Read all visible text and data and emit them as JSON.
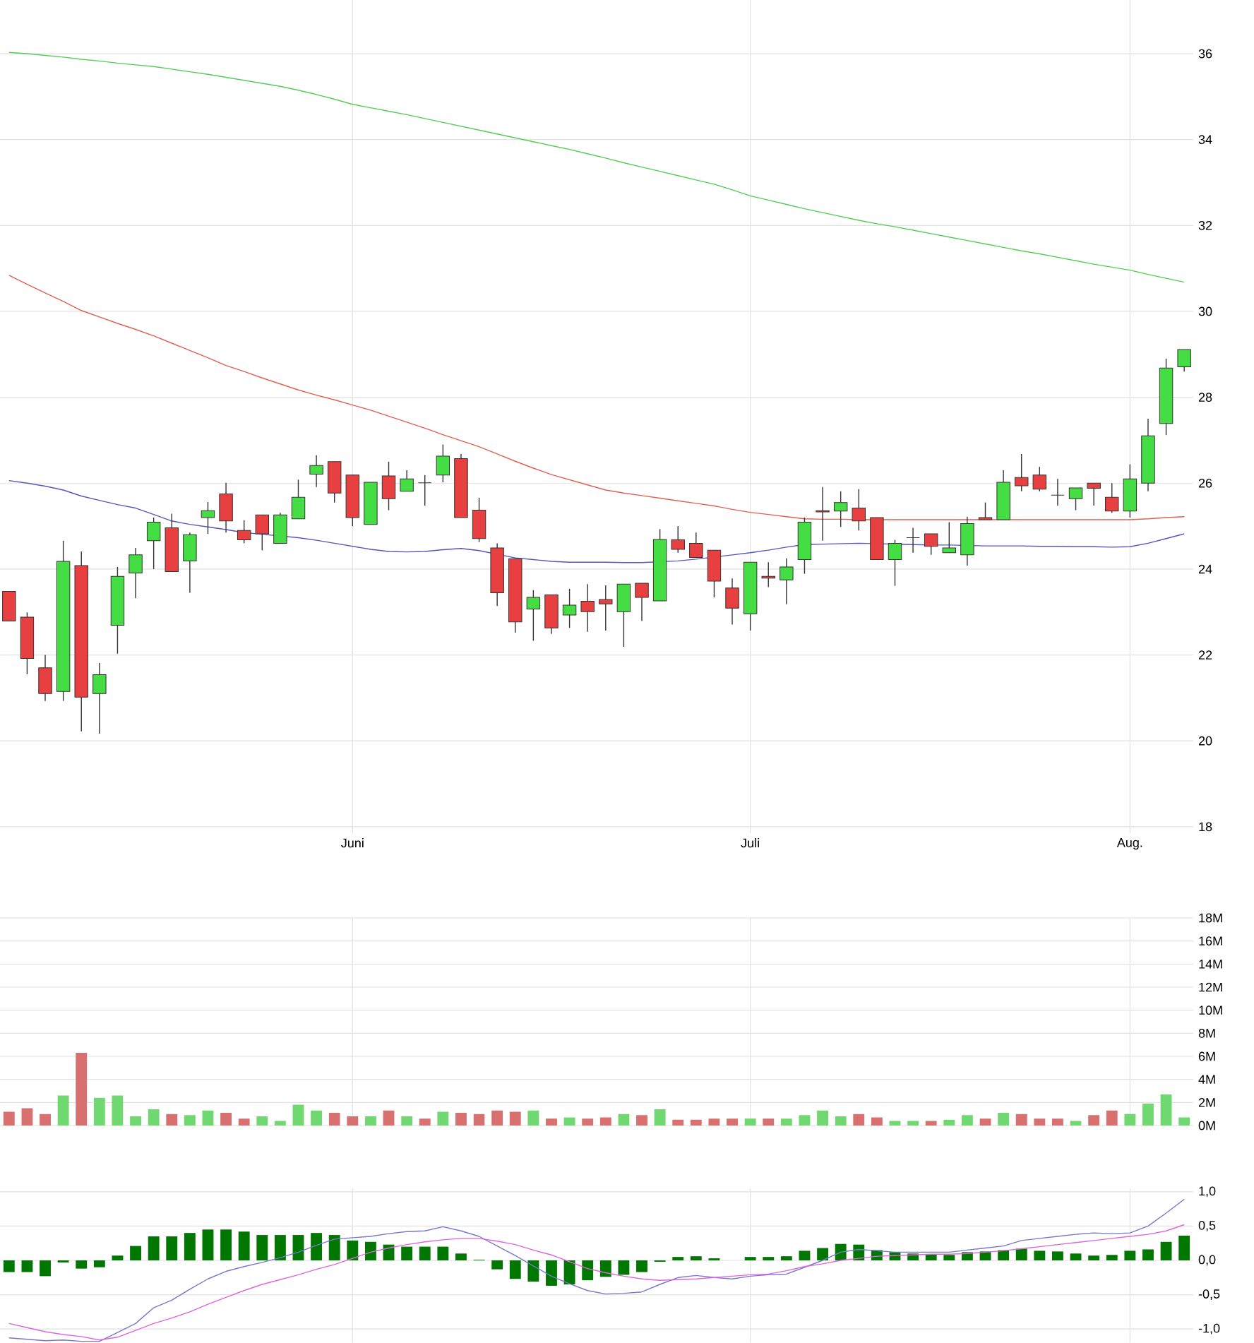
{
  "chart_data": [
    {
      "type": "candlestick",
      "categories": [
        null,
        null,
        null,
        null,
        null,
        null,
        null,
        null,
        null,
        null,
        null,
        null,
        null,
        null,
        null,
        null,
        null,
        null,
        null,
        "Juni",
        null,
        null,
        null,
        null,
        null,
        null,
        null,
        null,
        null,
        null,
        null,
        null,
        null,
        null,
        null,
        null,
        null,
        null,
        null,
        null,
        null,
        "Juli",
        null,
        null,
        null,
        null,
        null,
        null,
        null,
        null,
        null,
        null,
        null,
        null,
        null,
        null,
        null,
        null,
        null,
        null,
        null,
        null,
        "Aug.",
        null,
        null,
        null
      ],
      "ohlc": [
        [
          23.48,
          23.48,
          22.79,
          22.79
        ],
        [
          22.88,
          22.99,
          21.55,
          21.92
        ],
        [
          21.7,
          22.0,
          20.93,
          21.1
        ],
        [
          21.15,
          24.66,
          20.93,
          24.18
        ],
        [
          24.08,
          24.41,
          20.22,
          21.02
        ],
        [
          21.1,
          21.81,
          20.17,
          21.54
        ],
        [
          22.69,
          24.05,
          22.03,
          23.83
        ],
        [
          23.91,
          24.49,
          23.32,
          24.33
        ],
        [
          24.66,
          25.2,
          24.0,
          25.09
        ],
        [
          24.96,
          25.29,
          23.94,
          23.94
        ],
        [
          24.19,
          24.85,
          23.45,
          24.8
        ],
        [
          25.2,
          25.56,
          24.82,
          25.36
        ],
        [
          25.75,
          26.01,
          24.85,
          25.12
        ],
        [
          24.9,
          25.14,
          24.6,
          24.68
        ],
        [
          25.26,
          25.26,
          24.44,
          24.82
        ],
        [
          24.6,
          25.31,
          24.6,
          25.26
        ],
        [
          25.17,
          26.08,
          25.17,
          25.67
        ],
        [
          26.21,
          26.65,
          25.91,
          26.41
        ],
        [
          26.5,
          26.5,
          25.55,
          25.77
        ],
        [
          26.19,
          26.19,
          25.0,
          25.2
        ],
        [
          25.04,
          26.02,
          25.04,
          26.02
        ],
        [
          26.17,
          26.5,
          25.37,
          25.64
        ],
        [
          25.81,
          26.3,
          25.81,
          26.1
        ],
        [
          26.01,
          26.19,
          25.48,
          26.01
        ],
        [
          26.19,
          26.9,
          26.02,
          26.63
        ],
        [
          26.57,
          26.68,
          25.2,
          25.2
        ],
        [
          25.37,
          25.66,
          24.63,
          24.71
        ],
        [
          24.49,
          24.6,
          23.14,
          23.45
        ],
        [
          24.24,
          24.24,
          22.52,
          22.77
        ],
        [
          23.07,
          23.51,
          22.33,
          23.34
        ],
        [
          23.4,
          23.4,
          22.49,
          22.63
        ],
        [
          22.93,
          23.54,
          22.63,
          23.16
        ],
        [
          23.25,
          23.65,
          22.54,
          23.01
        ],
        [
          23.29,
          23.62,
          22.57,
          23.19
        ],
        [
          23.01,
          23.65,
          22.19,
          23.65
        ],
        [
          23.67,
          23.67,
          22.79,
          23.34
        ],
        [
          23.26,
          24.93,
          23.26,
          24.69
        ],
        [
          24.68,
          25.0,
          24.38,
          24.46
        ],
        [
          24.6,
          24.85,
          24.27,
          24.27
        ],
        [
          24.44,
          24.44,
          23.34,
          23.72
        ],
        [
          23.56,
          23.78,
          22.71,
          23.09
        ],
        [
          22.96,
          24.16,
          22.57,
          24.16
        ],
        [
          23.83,
          24.16,
          23.58,
          23.79
        ],
        [
          23.75,
          24.25,
          23.18,
          24.05
        ],
        [
          24.22,
          25.2,
          23.89,
          25.09
        ],
        [
          25.36,
          25.91,
          24.66,
          25.33
        ],
        [
          25.35,
          25.81,
          24.98,
          25.55
        ],
        [
          25.42,
          25.86,
          24.9,
          25.12
        ],
        [
          25.2,
          25.2,
          24.22,
          24.22
        ],
        [
          24.22,
          24.68,
          23.61,
          24.6
        ],
        [
          24.73,
          24.96,
          24.38,
          24.73
        ],
        [
          24.82,
          24.82,
          24.33,
          24.53
        ],
        [
          24.38,
          25.09,
          24.38,
          24.49
        ],
        [
          24.33,
          25.22,
          24.08,
          25.06
        ],
        [
          25.2,
          25.55,
          25.15,
          25.15
        ],
        [
          25.15,
          26.3,
          25.15,
          26.02
        ],
        [
          26.13,
          26.68,
          25.81,
          25.94
        ],
        [
          26.19,
          26.38,
          25.81,
          25.86
        ],
        [
          25.72,
          26.1,
          25.48,
          25.72
        ],
        [
          25.64,
          25.89,
          25.37,
          25.89
        ],
        [
          26.0,
          26.0,
          25.48,
          25.88
        ],
        [
          25.67,
          26.0,
          25.31,
          25.35
        ],
        [
          25.35,
          26.44,
          25.2,
          26.1
        ],
        [
          26.0,
          27.5,
          25.81,
          27.1
        ],
        [
          27.39,
          28.9,
          27.12,
          28.68
        ],
        [
          28.71,
          29.11,
          28.6,
          29.11
        ]
      ],
      "colors": [
        "#e84040",
        "#e84040",
        "#e84040",
        "#44dd44",
        "#e84040",
        "#44dd44",
        "#44dd44",
        "#44dd44",
        "#44dd44",
        "#e84040",
        "#44dd44",
        "#44dd44",
        "#e84040",
        "#e84040",
        "#e84040",
        "#44dd44",
        "#44dd44",
        "#44dd44",
        "#e84040",
        "#e84040",
        "#44dd44",
        "#e84040",
        "#44dd44",
        "#333333",
        "#44dd44",
        "#e84040",
        "#e84040",
        "#e84040",
        "#e84040",
        "#44dd44",
        "#e84040",
        "#44dd44",
        "#e84040",
        "#e84040",
        "#44dd44",
        "#e84040",
        "#44dd44",
        "#e84040",
        "#e84040",
        "#e84040",
        "#e84040",
        "#44dd44",
        "#e84040",
        "#44dd44",
        "#44dd44",
        "#e84040",
        "#44dd44",
        "#e84040",
        "#e84040",
        "#44dd44",
        "#333333",
        "#e84040",
        "#44dd44",
        "#44dd44",
        "#e84040",
        "#44dd44",
        "#e84040",
        "#e84040",
        "#333333",
        "#44dd44",
        "#e84040",
        "#e84040",
        "#44dd44",
        "#44dd44",
        "#44dd44",
        "#44dd44"
      ],
      "series": [
        {
          "type": "line",
          "color": "#55cc55",
          "values": [
            36.03,
            36.0,
            35.96,
            35.92,
            35.87,
            35.83,
            35.78,
            35.74,
            35.7,
            35.64,
            35.58,
            35.52,
            35.45,
            35.38,
            35.31,
            35.24,
            35.15,
            35.05,
            34.94,
            34.82,
            34.74,
            34.66,
            34.58,
            34.49,
            34.4,
            34.31,
            34.22,
            34.13,
            34.04,
            33.95,
            33.86,
            33.77,
            33.67,
            33.57,
            33.46,
            33.36,
            33.26,
            33.16,
            33.06,
            32.96,
            32.83,
            32.69,
            32.59,
            32.49,
            32.39,
            32.3,
            32.21,
            32.12,
            32.04,
            31.97,
            31.89,
            31.81,
            31.73,
            31.65,
            31.57,
            31.49,
            31.41,
            31.34,
            31.26,
            31.18,
            31.1,
            31.03,
            30.96,
            30.86,
            30.77,
            30.68
          ]
        },
        {
          "type": "line",
          "color": "#e06050",
          "values": [
            30.84,
            30.63,
            30.43,
            30.23,
            30.02,
            29.87,
            29.72,
            29.58,
            29.43,
            29.26,
            29.09,
            28.92,
            28.74,
            28.6,
            28.45,
            28.31,
            28.17,
            28.05,
            27.94,
            27.82,
            27.7,
            27.56,
            27.42,
            27.28,
            27.13,
            26.99,
            26.85,
            26.68,
            26.51,
            26.35,
            26.2,
            26.08,
            25.96,
            25.84,
            25.77,
            25.71,
            25.65,
            25.59,
            25.53,
            25.47,
            25.39,
            25.32,
            25.27,
            25.22,
            25.17,
            25.16,
            25.16,
            25.15,
            25.15,
            25.15,
            25.15,
            25.15,
            25.15,
            25.15,
            25.15,
            25.15,
            25.15,
            25.15,
            25.15,
            25.15,
            25.15,
            25.15,
            25.15,
            25.17,
            25.2,
            25.22
          ]
        },
        {
          "type": "line",
          "color": "#5555bb",
          "values": [
            26.06,
            26.0,
            25.93,
            25.84,
            25.7,
            25.6,
            25.5,
            25.42,
            25.27,
            25.12,
            25.04,
            24.98,
            24.92,
            24.85,
            24.81,
            null,
            24.73,
            24.67,
            24.6,
            24.53,
            24.46,
            24.41,
            24.4,
            24.41,
            24.45,
            24.48,
            24.43,
            null,
            24.26,
            24.22,
            24.18,
            24.16,
            24.16,
            24.16,
            24.15,
            24.15,
            null,
            24.19,
            24.23,
            null,
            24.33,
            24.38,
            24.44,
            24.51,
            24.57,
            24.58,
            24.59,
            24.6,
            null,
            24.58,
            24.57,
            24.56,
            24.56,
            null,
            24.54,
            24.54,
            24.54,
            24.53,
            24.53,
            24.52,
            24.52,
            24.51,
            24.52,
            24.6,
            24.71,
            24.82
          ]
        }
      ],
      "ylim": [
        17.85,
        37.25
      ],
      "yticks": [
        18,
        20,
        22,
        24,
        26,
        28,
        30,
        32,
        34,
        36
      ],
      "grid": true
    },
    {
      "type": "bar",
      "categories": [
        null,
        null,
        null,
        null,
        null,
        null,
        null,
        null,
        null,
        null,
        null,
        null,
        null,
        null,
        null,
        null,
        null,
        null,
        null,
        null,
        null,
        null,
        null,
        null,
        null,
        null,
        null,
        null,
        null,
        null,
        null,
        null,
        null,
        null,
        null,
        null,
        null,
        null,
        null,
        null,
        null,
        null,
        null,
        null,
        null,
        null,
        null,
        null,
        null,
        null,
        null,
        null,
        null,
        null,
        null,
        null,
        null,
        null,
        null,
        null,
        null,
        null,
        null,
        null,
        null,
        null
      ],
      "values": [
        1.2,
        1.5,
        1.0,
        2.6,
        6.3,
        2.4,
        2.6,
        0.8,
        1.4,
        1.0,
        0.9,
        1.3,
        1.1,
        0.6,
        0.8,
        0.4,
        1.8,
        1.3,
        1.1,
        0.8,
        0.8,
        1.3,
        0.8,
        0.6,
        1.2,
        1.1,
        1.0,
        1.3,
        1.2,
        1.3,
        0.6,
        0.7,
        0.6,
        0.7,
        1.0,
        0.9,
        1.4,
        0.5,
        0.5,
        0.6,
        0.6,
        0.6,
        0.6,
        0.6,
        0.9,
        1.3,
        0.8,
        1.0,
        0.7,
        0.4,
        0.4,
        0.4,
        0.5,
        0.9,
        0.6,
        1.1,
        1.0,
        0.6,
        0.6,
        0.4,
        0.9,
        1.3,
        1.0,
        1.9,
        2.7,
        0.7
      ],
      "colors": [
        "#d87070",
        "#d87070",
        "#d87070",
        "#70d870",
        "#d87070",
        "#70d870",
        "#70d870",
        "#70d870",
        "#70d870",
        "#d87070",
        "#70d870",
        "#70d870",
        "#d87070",
        "#d87070",
        "#70d870",
        "#70d870",
        "#70d870",
        "#70d870",
        "#d87070",
        "#d87070",
        "#70d870",
        "#d87070",
        "#70d870",
        "#d87070",
        "#70d870",
        "#d87070",
        "#d87070",
        "#d87070",
        "#d87070",
        "#70d870",
        "#d87070",
        "#70d870",
        "#d87070",
        "#d87070",
        "#70d870",
        "#d87070",
        "#70d870",
        "#d87070",
        "#d87070",
        "#d87070",
        "#d87070",
        "#70d870",
        "#d87070",
        "#70d870",
        "#70d870",
        "#70d870",
        "#70d870",
        "#d87070",
        "#d87070",
        "#70d870",
        "#70d870",
        "#d87070",
        "#70d870",
        "#70d870",
        "#d87070",
        "#70d870",
        "#d87070",
        "#d87070",
        "#d87070",
        "#70d870",
        "#d87070",
        "#d87070",
        "#70d870",
        "#70d870",
        "#70d870",
        "#70d870"
      ],
      "ylim": [
        0,
        18
      ],
      "yticks": [
        {
          "value": 0,
          "label": "0M"
        },
        {
          "value": 2,
          "label": "2M"
        },
        {
          "value": 4,
          "label": "4M"
        },
        {
          "value": 6,
          "label": "6M"
        },
        {
          "value": 8,
          "label": "8M"
        },
        {
          "value": 10,
          "label": "10M"
        },
        {
          "value": 12,
          "label": "12M"
        },
        {
          "value": 14,
          "label": "14M"
        },
        {
          "value": 16,
          "label": "16M"
        },
        {
          "value": 18,
          "label": "18M"
        }
      ],
      "grid": true,
      "tick_labels": "y"
    },
    {
      "type": "bar",
      "categories": [
        null,
        null,
        null,
        null,
        null,
        null,
        null,
        null,
        null,
        null,
        null,
        null,
        null,
        null,
        null,
        null,
        null,
        null,
        null,
        null,
        null,
        null,
        null,
        null,
        null,
        null,
        null,
        null,
        null,
        null,
        null,
        null,
        null,
        null,
        null,
        null,
        null,
        null,
        null,
        null,
        null,
        null,
        null,
        null,
        null,
        null,
        null,
        null,
        null,
        null,
        null,
        null,
        null,
        null,
        null,
        null,
        null,
        null,
        null,
        null,
        null,
        null,
        null,
        null,
        null,
        null
      ],
      "series": [
        {
          "type": "bar",
          "color": "#007700",
          "values": [
            -0.17,
            -0.17,
            -0.23,
            -0.03,
            -0.12,
            -0.1,
            0.07,
            0.21,
            0.35,
            0.35,
            0.4,
            0.45,
            0.45,
            0.42,
            0.37,
            0.37,
            0.37,
            0.4,
            0.37,
            0.29,
            0.27,
            0.23,
            0.2,
            0.2,
            0.2,
            0.1,
            0.01,
            -0.13,
            -0.27,
            -0.31,
            -0.37,
            -0.35,
            -0.29,
            -0.24,
            -0.21,
            -0.17,
            -0.02,
            0.05,
            0.06,
            0.03,
            0.0,
            0.05,
            0.05,
            0.06,
            0.14,
            0.18,
            0.24,
            0.23,
            0.15,
            0.12,
            0.1,
            0.09,
            0.08,
            0.12,
            0.13,
            0.15,
            0.17,
            0.14,
            0.13,
            0.1,
            0.07,
            0.08,
            0.14,
            0.16,
            0.27,
            0.36
          ]
        },
        {
          "type": "line",
          "color": "#7777cc",
          "values": [
            -1.13,
            -1.15,
            -1.17,
            -1.16,
            -1.18,
            -1.18,
            -1.05,
            -0.92,
            -0.69,
            -0.58,
            -0.42,
            -0.27,
            -0.16,
            -0.09,
            -0.03,
            0.04,
            0.12,
            0.22,
            0.31,
            0.33,
            0.35,
            0.39,
            0.42,
            0.43,
            0.49,
            0.43,
            0.35,
            0.21,
            0.07,
            -0.08,
            -0.23,
            -0.34,
            -0.44,
            -0.49,
            -0.48,
            -0.46,
            -0.35,
            -0.25,
            -0.22,
            -0.25,
            -0.27,
            -0.23,
            -0.21,
            -0.2,
            -0.1,
            0.0,
            0.12,
            0.16,
            0.14,
            0.12,
            0.12,
            0.12,
            0.12,
            0.15,
            0.18,
            0.21,
            0.29,
            0.32,
            0.35,
            0.38,
            0.4,
            0.39,
            0.4,
            0.5,
            0.69,
            0.89
          ]
        },
        {
          "type": "line",
          "color": "#dd66dd",
          "values": [
            -0.92,
            -0.98,
            -1.04,
            -1.08,
            -1.11,
            -1.16,
            -1.12,
            -1.02,
            -0.92,
            -0.84,
            -0.75,
            -0.64,
            -0.54,
            -0.44,
            -0.35,
            -0.28,
            -0.21,
            -0.13,
            -0.06,
            0.03,
            0.12,
            0.18,
            0.23,
            0.27,
            0.3,
            0.32,
            0.32,
            0.28,
            0.23,
            0.15,
            0.08,
            -0.02,
            -0.12,
            -0.18,
            -0.23,
            -0.27,
            -0.29,
            -0.28,
            -0.27,
            -0.25,
            -0.23,
            -0.21,
            -0.2,
            -0.15,
            -0.09,
            -0.05,
            0.0,
            0.03,
            0.06,
            0.07,
            0.08,
            0.09,
            0.09,
            0.1,
            0.12,
            0.14,
            0.17,
            0.2,
            0.23,
            0.26,
            0.29,
            0.32,
            0.35,
            0.38,
            0.43,
            0.52
          ]
        }
      ],
      "ylim": [
        -1.2,
        1.05
      ],
      "yticks": [
        {
          "value": -1,
          "label": "-1,0"
        },
        {
          "value": -0.5,
          "label": "-0,5"
        },
        {
          "value": 0,
          "label": "0,0"
        },
        {
          "value": 0.5,
          "label": "0,5"
        },
        {
          "value": 1,
          "label": "1,0"
        }
      ],
      "grid": true,
      "tick_labels": "y"
    }
  ]
}
